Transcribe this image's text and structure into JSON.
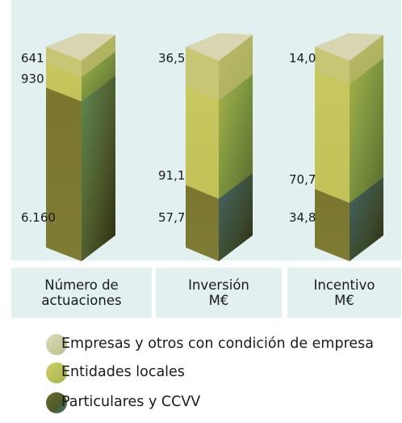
{
  "chart_data": {
    "type": "stacked-bar-3d",
    "categories": [
      "Número de actuaciones",
      "Inversión M€",
      "Incentivo M€"
    ],
    "series": [
      {
        "name": "Particulares y CCVV",
        "values": [
          6160,
          57.7,
          34.8
        ],
        "labels": [
          "6.160",
          "57,7",
          "34,8"
        ],
        "color": "#6c6a26"
      },
      {
        "name": "Entidades locales",
        "values": [
          930,
          91.1,
          70.7
        ],
        "labels": [
          "930",
          "91,1",
          "70,7"
        ],
        "color": "#c3c256"
      },
      {
        "name": "Empresas y otros con condición de empresa",
        "values": [
          641,
          36.5,
          14.0
        ],
        "labels": [
          "641",
          "36,5",
          "14,0"
        ],
        "color": "#cdcb8c"
      }
    ]
  },
  "footer": [
    {
      "label": "Número de\nactuaciones"
    },
    {
      "label": "Inversión\nM€"
    },
    {
      "label": "Incentivo\nM€"
    }
  ],
  "legend": [
    {
      "label": "Empresas y otros con condición de empresa",
      "color": "#cdcb8c"
    },
    {
      "label": "Entidades locales",
      "color": "#c3c256"
    },
    {
      "label": "Particulares y CCVV",
      "color": "#6c6a26"
    }
  ]
}
